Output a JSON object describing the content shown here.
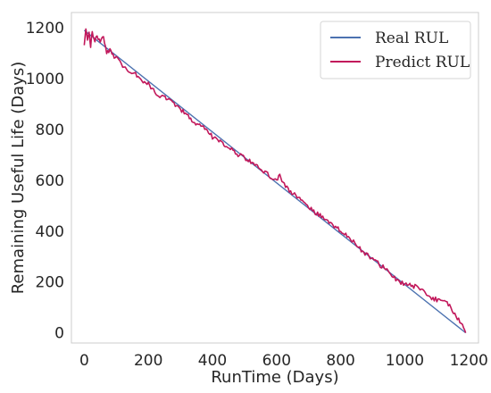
{
  "chart_data": {
    "type": "line",
    "xlabel": "RunTime (Days)",
    "ylabel": "Remaining Useful Life (Days)",
    "xlim": [
      -40,
      1230
    ],
    "ylim": [
      -40,
      1260
    ],
    "xticks": [
      0,
      200,
      400,
      600,
      800,
      1000,
      1200
    ],
    "yticks": [
      0,
      200,
      400,
      600,
      800,
      1000,
      1200
    ],
    "grid": false,
    "legend_position": "upper right",
    "series": [
      {
        "name": "Real RUL",
        "color": "#4c72b0",
        "style": "linear",
        "x": [
          0,
          1190
        ],
        "y": [
          1190,
          0
        ]
      },
      {
        "name": "Predict RUL",
        "color": "#c2185b",
        "style": "noisy",
        "x": [
          0,
          5,
          10,
          15,
          20,
          25,
          30,
          40,
          50,
          60,
          70,
          80,
          90,
          100,
          120,
          140,
          160,
          180,
          200,
          220,
          240,
          260,
          280,
          300,
          320,
          340,
          360,
          380,
          400,
          420,
          440,
          460,
          480,
          500,
          520,
          540,
          560,
          580,
          600,
          610,
          620,
          640,
          660,
          680,
          700,
          720,
          740,
          760,
          780,
          800,
          820,
          840,
          860,
          880,
          900,
          920,
          940,
          960,
          980,
          1000,
          1020,
          1040,
          1060,
          1080,
          1100,
          1120,
          1140,
          1160,
          1180,
          1190
        ],
        "y": [
          1140,
          1200,
          1150,
          1175,
          1130,
          1185,
          1150,
          1160,
          1140,
          1170,
          1100,
          1110,
          1090,
          1080,
          1050,
          1030,
          1020,
          990,
          980,
          950,
          930,
          920,
          900,
          880,
          860,
          830,
          820,
          800,
          770,
          760,
          740,
          720,
          700,
          690,
          670,
          655,
          635,
          615,
          600,
          625,
          590,
          560,
          540,
          515,
          500,
          470,
          460,
          440,
          420,
          400,
          380,
          360,
          330,
          310,
          290,
          270,
          250,
          230,
          200,
          195,
          185,
          180,
          160,
          140,
          130,
          125,
          110,
          60,
          40,
          0
        ]
      }
    ]
  }
}
